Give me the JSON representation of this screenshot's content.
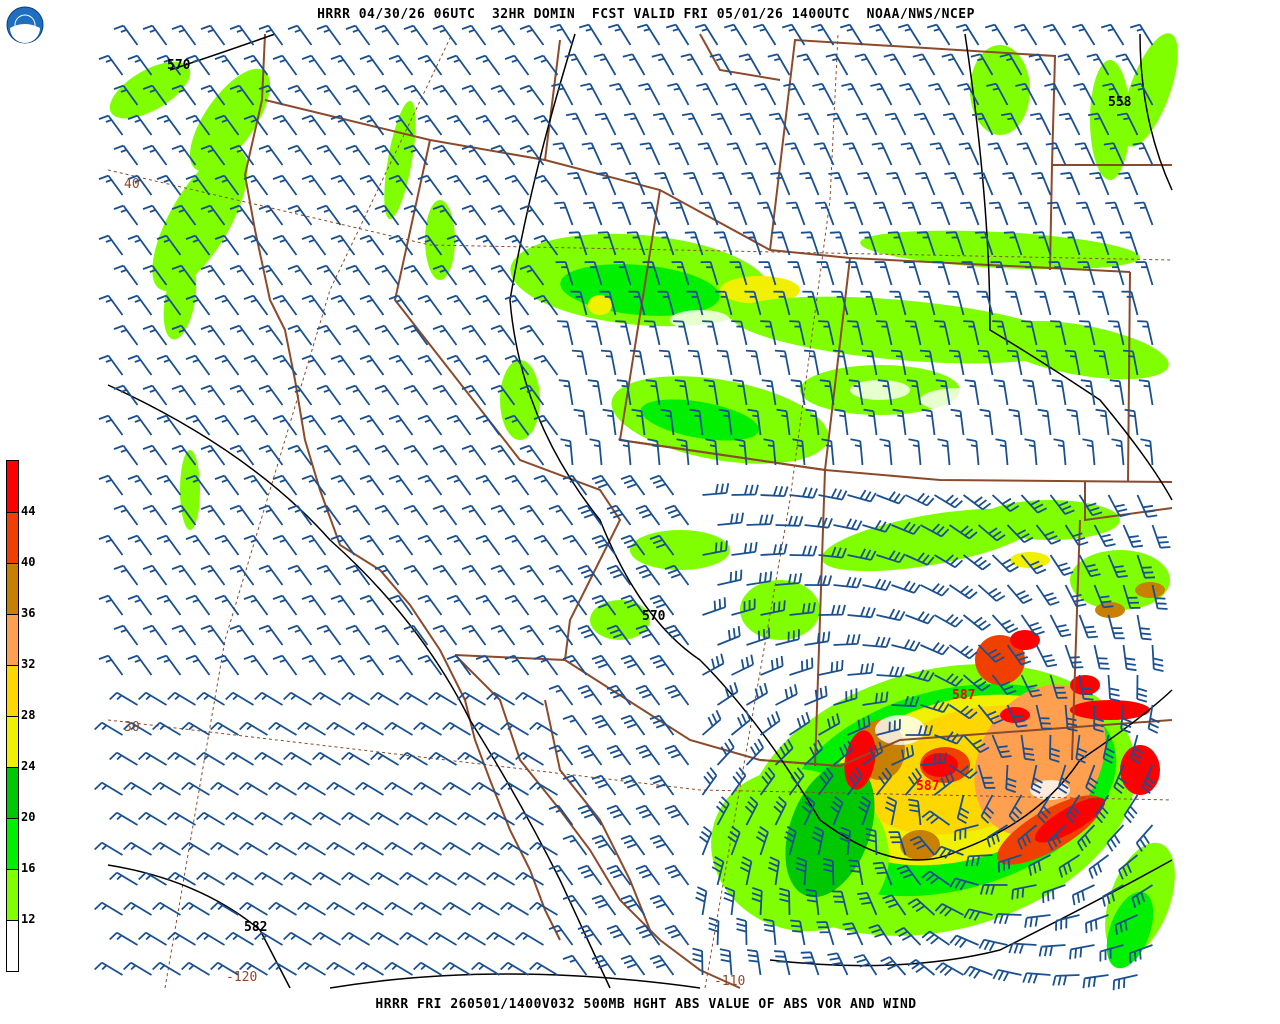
{
  "header": {
    "title": "HRRR 04/30/26 06UTC  32HR DOMIN  FCST VALID FRI 05/01/26 1400UTC  NOAA/NWS/NCEP",
    "logo_text": "NOAA"
  },
  "footer": {
    "caption": "HRRR FRI 260501/1400V032 500MB HGHT ABS VALUE OF ABS VOR AND WIND"
  },
  "colorbar": {
    "labels": [
      "44",
      "40",
      "36",
      "32",
      "28",
      "24",
      "20",
      "16",
      "12"
    ],
    "colors": [
      "#ff0000",
      "#f04000",
      "#c88000",
      "#ffa050",
      "#ffd700",
      "#f0f000",
      "#00c800",
      "#00f000",
      "#80ff00",
      "#ffffff"
    ]
  },
  "map": {
    "colors": {
      "barb": "#1a5090",
      "border": "#8b4a2b",
      "contour": "#000000",
      "contour_red": "#ff0000"
    },
    "contour_labels": [
      "570",
      "558",
      "570",
      "582",
      "587",
      "587"
    ],
    "grid_labels": [
      "40",
      "30",
      "-120",
      "-110"
    ]
  }
}
